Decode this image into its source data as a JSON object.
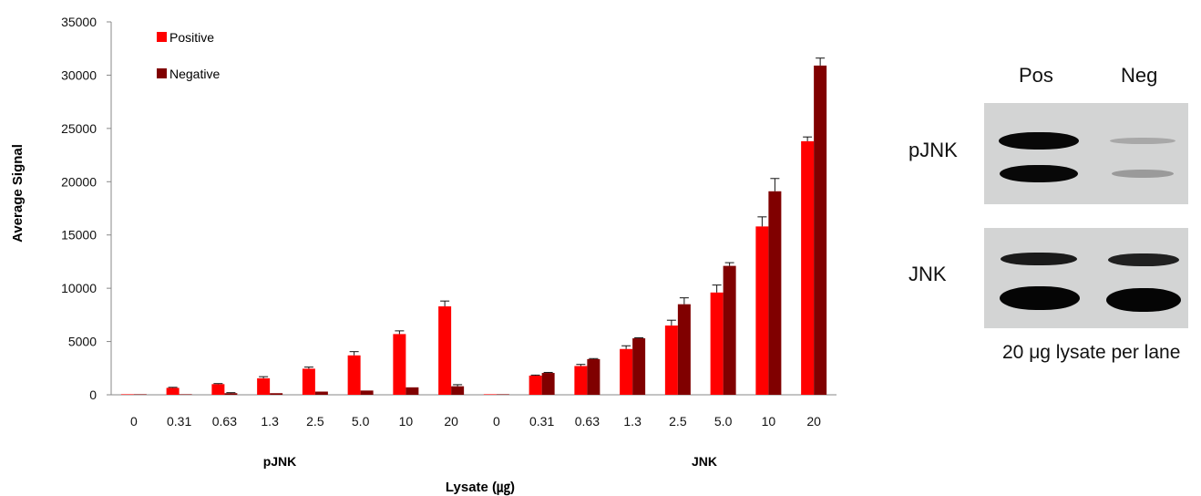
{
  "chart_data": {
    "type": "bar",
    "ylabel": "Average Signal",
    "xlabel": "Lysate (㎍)",
    "ylim": [
      0,
      35000
    ],
    "yticks": [
      "0",
      "5000",
      "10000",
      "15000",
      "20000",
      "25000",
      "30000",
      "35000"
    ],
    "grid": false,
    "legend_position": "top-left",
    "groups": [
      {
        "label": "pJNK",
        "categories": [
          "0",
          "0.31",
          "0.63",
          "1.3",
          "2.5",
          "5.0",
          "10",
          "20"
        ]
      },
      {
        "label": "JNK",
        "categories": [
          "0",
          "0.31",
          "0.63",
          "1.3",
          "2.5",
          "5.0",
          "10",
          "20"
        ]
      }
    ],
    "series": [
      {
        "name": "Positive",
        "color": "#ff0000",
        "values": [
          50,
          650,
          1000,
          1550,
          2450,
          3700,
          5700,
          8300,
          50,
          1800,
          2700,
          4300,
          6500,
          9600,
          15800,
          23800
        ],
        "errors": [
          0,
          50,
          50,
          150,
          150,
          350,
          300,
          500,
          0,
          50,
          150,
          300,
          500,
          700,
          900,
          400
        ]
      },
      {
        "name": "Negative",
        "color": "#800000",
        "values": [
          50,
          50,
          150,
          150,
          300,
          400,
          700,
          800,
          50,
          2050,
          3350,
          5300,
          8500,
          12100,
          19100,
          30900
        ],
        "errors": [
          0,
          0,
          50,
          0,
          0,
          0,
          0,
          150,
          0,
          50,
          50,
          50,
          600,
          300,
          1200,
          700
        ]
      }
    ]
  },
  "blot": {
    "lane_labels": [
      "Pos",
      "Neg"
    ],
    "row_labels": [
      "pJNK",
      "JNK"
    ],
    "caption": "20 μg lysate per lane"
  }
}
